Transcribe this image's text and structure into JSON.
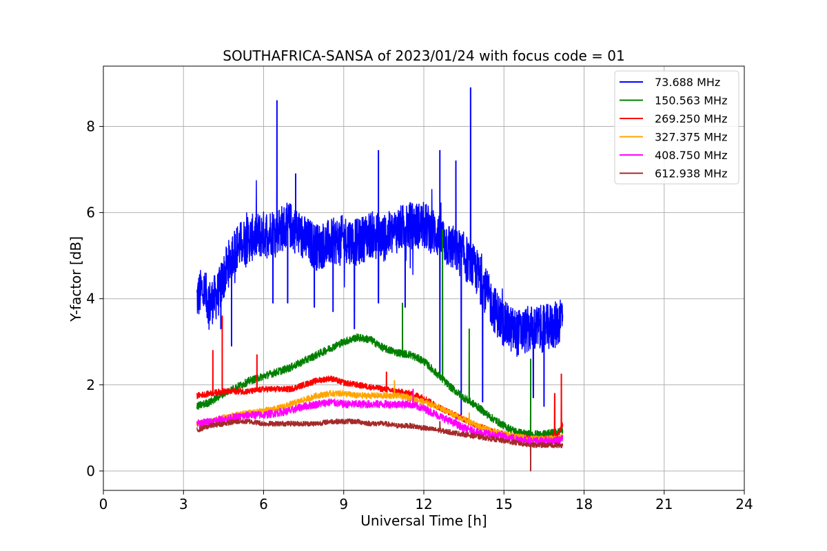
{
  "chart_data": {
    "type": "line",
    "title": "SOUTHAFRICA-SANSA of 2023/01/24 with focus code = 01",
    "xlabel": "Universal Time [h]",
    "ylabel": "Y-factor [dB]",
    "xlim": [
      0,
      24
    ],
    "ylim": [
      -0.45,
      9.4
    ],
    "xticks": [
      0,
      3,
      6,
      9,
      12,
      15,
      18,
      21,
      24
    ],
    "yticks": [
      0,
      2,
      4,
      6,
      8
    ],
    "grid": true,
    "legend_position": "top-right",
    "series": [
      {
        "name": " 73.688 MHz",
        "color": "#0000ff",
        "x": [
          3.5,
          3.7,
          4.0,
          4.3,
          4.5,
          4.8,
          5.0,
          5.5,
          6.0,
          6.5,
          7.0,
          7.5,
          8.0,
          8.5,
          9.0,
          9.5,
          10.0,
          10.5,
          11.0,
          11.5,
          12.0,
          12.5,
          13.0,
          13.5,
          14.0,
          14.3,
          14.6,
          15.0,
          15.5,
          16.0,
          16.5,
          17.0,
          17.2
        ],
        "y": [
          4.0,
          4.2,
          3.9,
          4.1,
          4.5,
          5.0,
          5.2,
          5.4,
          5.5,
          5.6,
          5.7,
          5.4,
          5.2,
          5.3,
          5.4,
          5.3,
          5.5,
          5.4,
          5.6,
          5.7,
          5.7,
          5.5,
          5.2,
          5.0,
          4.6,
          4.2,
          3.8,
          3.4,
          3.2,
          3.3,
          3.3,
          3.4,
          3.7
        ],
        "spikes": [
          [
            4.4,
            3.3
          ],
          [
            4.8,
            2.9
          ],
          [
            6.35,
            3.9
          ],
          [
            6.5,
            8.6
          ],
          [
            6.9,
            3.9
          ],
          [
            7.2,
            6.9
          ],
          [
            7.9,
            3.8
          ],
          [
            8.6,
            3.7
          ],
          [
            9.4,
            3.3
          ],
          [
            10.3,
            7.45
          ],
          [
            10.3,
            3.9
          ],
          [
            11.3,
            3.8
          ],
          [
            12.6,
            7.45
          ],
          [
            12.6,
            2.2
          ],
          [
            13.2,
            7.2
          ],
          [
            13.4,
            1.3
          ],
          [
            13.75,
            8.9
          ],
          [
            14.2,
            1.6
          ],
          [
            16.1,
            1.7
          ],
          [
            16.5,
            1.5
          ]
        ]
      },
      {
        "name": "150.563 MHz",
        "color": "#008000",
        "x": [
          3.5,
          4.0,
          4.5,
          5.0,
          5.5,
          6.0,
          6.5,
          7.0,
          7.5,
          8.0,
          8.5,
          9.0,
          9.5,
          10.0,
          10.5,
          11.0,
          11.5,
          12.0,
          12.5,
          13.0,
          13.5,
          14.0,
          14.5,
          15.0,
          15.5,
          16.0,
          16.5,
          17.0,
          17.2
        ],
        "y": [
          1.5,
          1.6,
          1.8,
          1.95,
          2.1,
          2.2,
          2.3,
          2.4,
          2.55,
          2.7,
          2.85,
          3.0,
          3.1,
          3.05,
          2.85,
          2.75,
          2.7,
          2.55,
          2.25,
          1.95,
          1.7,
          1.5,
          1.25,
          1.05,
          0.9,
          0.85,
          0.85,
          0.9,
          0.95
        ],
        "spikes": [
          [
            11.2,
            3.9
          ],
          [
            12.7,
            5.6
          ],
          [
            13.7,
            3.3
          ],
          [
            16.0,
            2.6
          ]
        ]
      },
      {
        "name": "269.250 MHz",
        "color": "#ff0000",
        "x": [
          3.5,
          4.0,
          4.5,
          5.0,
          5.5,
          6.0,
          6.5,
          7.0,
          7.5,
          8.0,
          8.5,
          9.0,
          9.5,
          10.0,
          10.5,
          11.0,
          11.5,
          12.0,
          12.5,
          13.0,
          13.5,
          14.0,
          14.5,
          15.0,
          15.5,
          16.0,
          16.5,
          17.0,
          17.2
        ],
        "y": [
          1.75,
          1.8,
          1.85,
          1.85,
          1.85,
          1.9,
          1.9,
          1.9,
          2.0,
          2.1,
          2.15,
          2.05,
          2.0,
          1.95,
          1.9,
          1.85,
          1.8,
          1.7,
          1.5,
          1.35,
          1.2,
          1.05,
          0.95,
          0.85,
          0.8,
          0.75,
          0.75,
          0.8,
          1.1
        ],
        "spikes": [
          [
            4.1,
            2.8
          ],
          [
            4.45,
            3.6
          ],
          [
            5.75,
            2.7
          ],
          [
            10.6,
            2.3
          ],
          [
            16.9,
            1.8
          ],
          [
            17.15,
            2.25
          ]
        ]
      },
      {
        "name": "327.375 MHz",
        "color": "#ffa500",
        "x": [
          3.5,
          4.0,
          4.5,
          5.0,
          5.5,
          6.0,
          6.5,
          7.0,
          7.5,
          8.0,
          8.5,
          9.0,
          9.5,
          10.0,
          10.5,
          11.0,
          11.5,
          12.0,
          12.5,
          13.0,
          13.5,
          14.0,
          14.5,
          15.0,
          15.5,
          16.0,
          16.5,
          17.0,
          17.2
        ],
        "y": [
          1.1,
          1.15,
          1.25,
          1.3,
          1.35,
          1.4,
          1.45,
          1.55,
          1.65,
          1.75,
          1.8,
          1.8,
          1.75,
          1.75,
          1.75,
          1.75,
          1.7,
          1.6,
          1.5,
          1.35,
          1.2,
          1.05,
          0.95,
          0.85,
          0.8,
          0.75,
          0.75,
          0.75,
          0.8
        ],
        "spikes": [
          [
            10.9,
            2.1
          ],
          [
            13.7,
            1.35
          ]
        ]
      },
      {
        "name": "408.750 MHz",
        "color": "#ff00ff",
        "x": [
          3.5,
          4.0,
          4.5,
          5.0,
          5.5,
          6.0,
          6.5,
          7.0,
          7.5,
          8.0,
          8.5,
          9.0,
          9.5,
          10.0,
          10.5,
          11.0,
          11.5,
          12.0,
          12.5,
          13.0,
          13.5,
          14.0,
          14.5,
          15.0,
          15.5,
          16.0,
          16.5,
          17.0,
          17.2
        ],
        "y": [
          1.1,
          1.15,
          1.2,
          1.25,
          1.3,
          1.3,
          1.35,
          1.4,
          1.5,
          1.55,
          1.6,
          1.55,
          1.55,
          1.55,
          1.55,
          1.55,
          1.55,
          1.45,
          1.3,
          1.15,
          1.0,
          0.9,
          0.85,
          0.8,
          0.75,
          0.7,
          0.7,
          0.7,
          0.75
        ],
        "spikes": [
          [
            11.6,
            1.9
          ],
          [
            13.2,
            1.25
          ]
        ]
      },
      {
        "name": "612.938 MHz",
        "color": "#a52a2a",
        "x": [
          3.5,
          4.0,
          4.5,
          5.0,
          5.5,
          6.0,
          6.5,
          7.0,
          7.5,
          8.0,
          8.5,
          9.0,
          9.5,
          10.0,
          10.5,
          11.0,
          11.5,
          12.0,
          12.5,
          13.0,
          13.5,
          14.0,
          14.5,
          15.0,
          15.5,
          16.0,
          16.5,
          17.0,
          17.2
        ],
        "y": [
          0.95,
          1.05,
          1.1,
          1.15,
          1.15,
          1.1,
          1.1,
          1.1,
          1.1,
          1.1,
          1.15,
          1.15,
          1.15,
          1.1,
          1.1,
          1.05,
          1.05,
          1.0,
          0.95,
          0.9,
          0.85,
          0.8,
          0.75,
          0.7,
          0.65,
          0.6,
          0.6,
          0.6,
          0.6
        ],
        "spikes": [
          [
            12.6,
            1.15
          ],
          [
            16.0,
            0.0
          ]
        ]
      }
    ]
  }
}
